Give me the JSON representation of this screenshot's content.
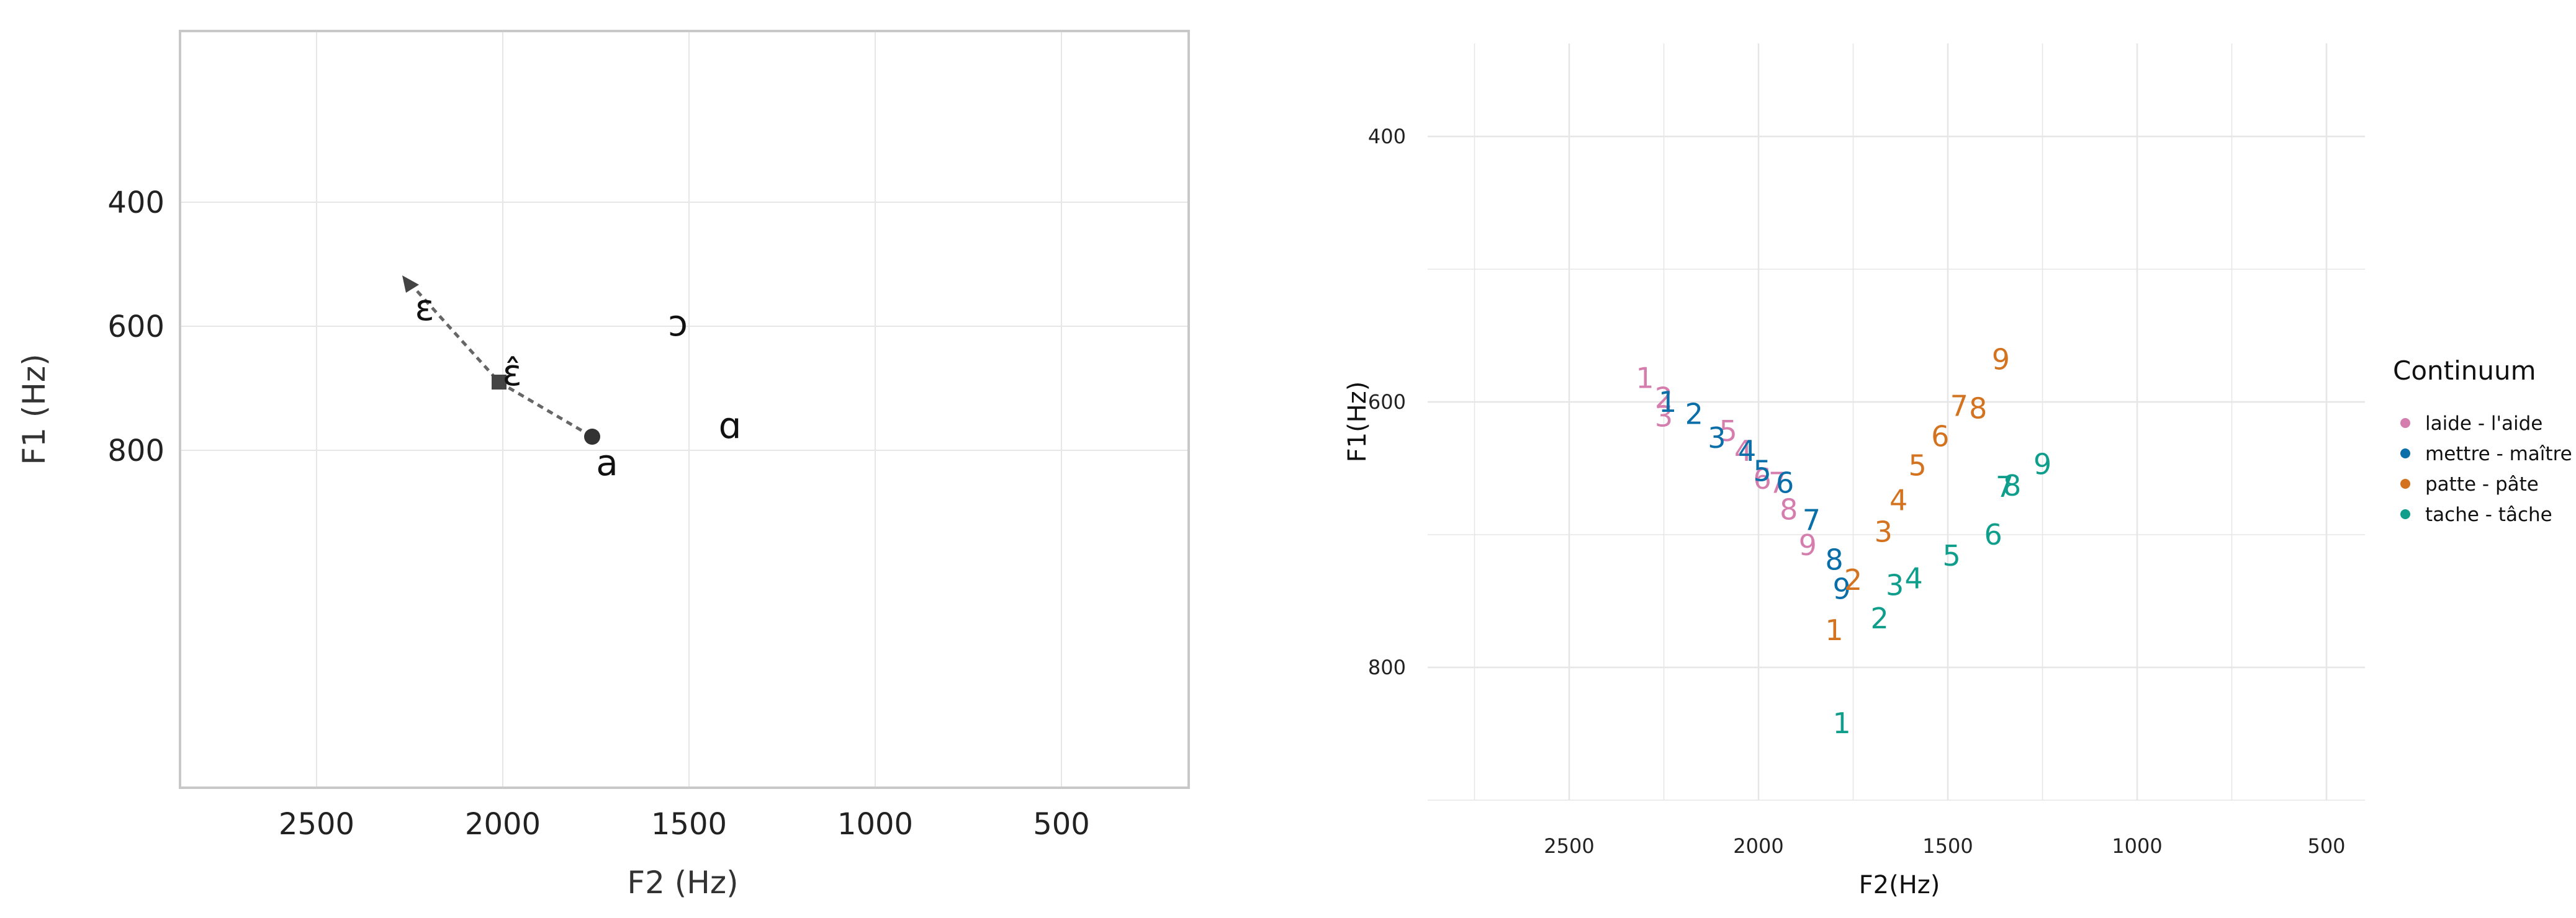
{
  "colors": {
    "laide": "#D57EAE",
    "mettre": "#0A6FA8",
    "patte": "#D4731F",
    "tache": "#109E8C",
    "grid": "#E6E6E6",
    "panel_border": "#C8C8C8"
  },
  "chart_data": [
    {
      "type": "scatter",
      "title": "",
      "xlabel": "F2 (Hz)",
      "ylabel": "F1 (Hz)",
      "x_reversed": true,
      "y_reversed": true,
      "xlim": [
        2800,
        450
      ],
      "ylim": [
        330,
        870
      ],
      "x_ticks": [
        "2500",
        "2000",
        "1500",
        "1000",
        "500"
      ],
      "y_ticks": [
        "400",
        "600",
        "800"
      ],
      "grid": true,
      "vowels": [
        {
          "label": "ɛ",
          "x": 2210,
          "y": 570
        },
        {
          "label": "ɔ",
          "x": 1530,
          "y": 595
        },
        {
          "label": "ɛ̂",
          "x": 1975,
          "y": 675
        },
        {
          "label": "ɑ",
          "x": 1390,
          "y": 760
        },
        {
          "label": "a",
          "x": 1720,
          "y": 820
        }
      ],
      "trajectory": [
        {
          "marker": "triangle",
          "x": 2250,
          "y": 530
        },
        {
          "marker": "square",
          "x": 2010,
          "y": 690
        },
        {
          "marker": "circle",
          "x": 1760,
          "y": 778
        }
      ]
    },
    {
      "type": "scatter",
      "title": "",
      "xlabel": "F2(Hz)",
      "ylabel": "F1(Hz)",
      "x_reversed": true,
      "y_reversed": true,
      "xlim": [
        2950,
        400
      ],
      "ylim": [
        350,
        900
      ],
      "x_ticks": [
        "2500",
        "2000",
        "1500",
        "1000",
        "500"
      ],
      "y_ticks": [
        "400",
        "600",
        "800"
      ],
      "grid": true,
      "legend": {
        "title": "Continuum",
        "position": "right",
        "entries": [
          "laide - l'aide",
          "mettre - maître",
          "patte - pâte",
          "tache - tâche"
        ]
      },
      "series": [
        {
          "name": "laide - l'aide",
          "color_key": "laide",
          "labels": [
            "1",
            "2",
            "3",
            "4",
            "5",
            "6",
            "7",
            "8",
            "9"
          ],
          "x": [
            2300,
            2250,
            2250,
            2040,
            2080,
            1990,
            1950,
            1920,
            1870
          ],
          "y": [
            582,
            597,
            611,
            637,
            622,
            658,
            661,
            681,
            708
          ]
        },
        {
          "name": "mettre - maître",
          "color_key": "mettre",
          "labels": [
            "1",
            "2",
            "3",
            "4",
            "5",
            "6",
            "7",
            "8",
            "9"
          ],
          "x": [
            2240,
            2170,
            2110,
            2030,
            1990,
            1930,
            1860,
            1800,
            1780
          ],
          "y": [
            600,
            609,
            627,
            637,
            652,
            661,
            689,
            719,
            741
          ]
        },
        {
          "name": "patte - pâte",
          "color_key": "patte",
          "labels": [
            "1",
            "2",
            "3",
            "4",
            "5",
            "6",
            "7",
            "8",
            "9"
          ],
          "x": [
            1800,
            1750,
            1670,
            1630,
            1580,
            1520,
            1470,
            1420,
            1360
          ],
          "y": [
            772,
            734,
            698,
            674,
            648,
            626,
            603,
            605,
            568
          ]
        },
        {
          "name": "tache - tâche",
          "color_key": "tache",
          "labels": [
            "1",
            "2",
            "3",
            "4",
            "5",
            "6",
            "7",
            "8",
            "9"
          ],
          "x": [
            1780,
            1680,
            1640,
            1590,
            1490,
            1380,
            1350,
            1330,
            1250
          ],
          "y": [
            842,
            763,
            738,
            733,
            716,
            700,
            664,
            663,
            647
          ]
        }
      ]
    }
  ]
}
